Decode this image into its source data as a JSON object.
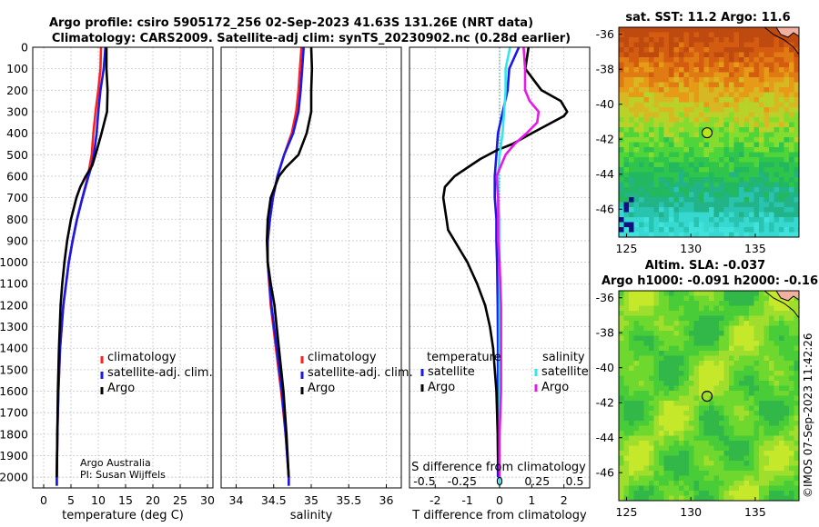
{
  "figure": {
    "title_line1": "Argo profile: csiro 5905172_256 02-Sep-2023 41.63S 131.26E (NRT data)",
    "title_line2": "Climatology: CARS2009. Satellite-adj clim: synTS_20230902.nc (0.28d earlier)",
    "credit_line1": "Argo Australia",
    "credit_line2": "PI: Susan Wijffels",
    "watermark": "©IMOS 07-Sep-2023 11:42:26"
  },
  "depth_axis": {
    "ylim": [
      0,
      2050
    ],
    "ticks": [
      0,
      100,
      200,
      300,
      400,
      500,
      600,
      700,
      800,
      900,
      1000,
      1100,
      1200,
      1300,
      1400,
      1500,
      1600,
      1700,
      1800,
      1900,
      2000
    ]
  },
  "colors": {
    "climatology": "#ff2020",
    "satellite": "#1a1ae6",
    "argo": "#000000",
    "sat_salinity_diff": "#33e6ee",
    "argo_salinity_diff": "#e619e6",
    "zero_line": "#2e8b8b"
  },
  "chart_data": [
    {
      "type": "line",
      "panel": "temperature",
      "xlabel": "temperature (deg C)",
      "xlim": [
        -2,
        31
      ],
      "xticks": [
        0,
        5,
        10,
        15,
        20,
        25,
        30
      ],
      "legend": {
        "position": "lower-right",
        "entries": [
          "climatology",
          "satellite-adj. clim.",
          "Argo"
        ]
      },
      "series": [
        {
          "name": "climatology",
          "color": "#ff2020",
          "depth": [
            0,
            100,
            200,
            300,
            400,
            500,
            600,
            700,
            800,
            900,
            1000,
            1200,
            1400,
            1600,
            1800,
            2000,
            2040
          ],
          "values": [
            10.5,
            10.4,
            10.0,
            9.5,
            9.1,
            8.8,
            8.1,
            7.1,
            6.1,
            5.3,
            4.6,
            3.6,
            3.0,
            2.7,
            2.5,
            2.4,
            2.4
          ]
        },
        {
          "name": "satellite-adj. clim.",
          "color": "#1a1ae6",
          "depth": [
            0,
            100,
            200,
            300,
            400,
            500,
            550,
            600,
            700,
            800,
            900,
            1000,
            1200,
            1400,
            1600,
            1800,
            2000,
            2040
          ],
          "values": [
            11.3,
            11.0,
            10.4,
            10.0,
            9.7,
            9.2,
            8.8,
            8.2,
            7.1,
            6.1,
            5.3,
            4.6,
            3.6,
            3.0,
            2.7,
            2.5,
            2.4,
            2.4
          ]
        },
        {
          "name": "Argo",
          "color": "#000000",
          "depth": [
            0,
            100,
            200,
            300,
            320,
            400,
            500,
            550,
            600,
            650,
            700,
            800,
            900,
            1000,
            1100,
            1200,
            1400,
            1600,
            1800,
            2000
          ],
          "values": [
            11.5,
            11.5,
            11.7,
            11.6,
            11.4,
            10.6,
            9.5,
            8.9,
            7.7,
            6.7,
            6.0,
            5.0,
            4.3,
            3.8,
            3.4,
            3.1,
            2.8,
            2.6,
            2.5,
            2.4
          ]
        }
      ]
    },
    {
      "type": "line",
      "panel": "salinity",
      "xlabel": "salinity",
      "xlim": [
        33.8,
        36.2
      ],
      "xticks": [
        34,
        34.5,
        35,
        35.5,
        36
      ],
      "legend": {
        "position": "lower-right",
        "entries": [
          "climatology",
          "satellite-adj. clim.",
          "Argo"
        ]
      },
      "series": [
        {
          "name": "climatology",
          "color": "#ff2020",
          "depth": [
            0,
            100,
            200,
            300,
            400,
            500,
            600,
            700,
            800,
            900,
            1000,
            1200,
            1400,
            1600,
            1800,
            2000,
            2040
          ],
          "values": [
            34.87,
            34.85,
            34.83,
            34.8,
            34.74,
            34.64,
            34.55,
            34.49,
            34.45,
            34.42,
            34.42,
            34.46,
            34.53,
            34.6,
            34.66,
            34.7,
            34.7
          ]
        },
        {
          "name": "satellite-adj. clim.",
          "color": "#1a1ae6",
          "depth": [
            0,
            100,
            200,
            300,
            400,
            500,
            600,
            700,
            800,
            900,
            1000,
            1200,
            1400,
            1600,
            1800,
            2000,
            2040
          ],
          "values": [
            34.9,
            34.88,
            34.86,
            34.83,
            34.76,
            34.64,
            34.55,
            34.49,
            34.45,
            34.42,
            34.42,
            34.47,
            34.54,
            34.61,
            34.66,
            34.7,
            34.7
          ]
        },
        {
          "name": "Argo",
          "color": "#000000",
          "depth": [
            0,
            100,
            200,
            300,
            400,
            500,
            560,
            600,
            700,
            800,
            900,
            1000,
            1100,
            1200,
            1400,
            1600,
            1800,
            2000
          ],
          "values": [
            35.0,
            35.01,
            35.0,
            35.0,
            34.94,
            34.83,
            34.66,
            34.57,
            34.46,
            34.42,
            34.41,
            34.42,
            34.46,
            34.51,
            34.57,
            34.63,
            34.67,
            34.7
          ]
        }
      ]
    },
    {
      "type": "line",
      "panel": "difference",
      "xlabel": "T difference from climatology",
      "xlabel_top": "S difference from climatology",
      "xlim": [
        -2.8,
        2.8
      ],
      "xticks": [
        -2,
        -1,
        0,
        1,
        2
      ],
      "top_tick_labels": [
        "-0.5",
        "-0.25",
        "0",
        "0.25",
        "0.5"
      ],
      "legend": {
        "position": "lower",
        "temperature_title": "temperature",
        "salinity_title": "salinity",
        "temperature_entries": [
          "satellite",
          "Argo"
        ],
        "salinity_entries": [
          "satellite",
          "Argo"
        ]
      },
      "series": [
        {
          "name": "temperature satellite",
          "color": "#1a1ae6",
          "depth": [
            0,
            100,
            200,
            300,
            400,
            500,
            600,
            700,
            800,
            900,
            1000,
            1200,
            1400,
            1600,
            1800,
            2000
          ],
          "values": [
            0.6,
            0.3,
            0.25,
            0.1,
            -0.05,
            -0.1,
            -0.15,
            -0.15,
            -0.1,
            -0.1,
            -0.08,
            -0.06,
            -0.05,
            -0.05,
            -0.05,
            -0.05
          ]
        },
        {
          "name": "temperature Argo",
          "color": "#000000",
          "depth": [
            0,
            100,
            200,
            250,
            300,
            320,
            400,
            450,
            480,
            520,
            560,
            600,
            650,
            700,
            750,
            800,
            850,
            900,
            1000,
            1100,
            1200,
            1300,
            1400,
            1500,
            1600,
            1700,
            1800,
            1900,
            2000
          ],
          "values": [
            0.9,
            0.8,
            1.3,
            1.9,
            2.1,
            2.0,
            1.0,
            0.4,
            -0.1,
            -0.6,
            -1.0,
            -1.4,
            -1.7,
            -1.75,
            -1.7,
            -1.65,
            -1.6,
            -1.4,
            -1.0,
            -0.7,
            -0.45,
            -0.3,
            -0.2,
            -0.15,
            -0.1,
            -0.08,
            -0.06,
            -0.05,
            -0.02
          ]
        },
        {
          "name": "salinity satellite",
          "color": "#33e6ee",
          "depth": [
            0,
            100,
            200,
            300,
            400,
            500,
            600,
            700,
            800,
            900,
            1000,
            1200,
            1400,
            1600,
            1800,
            2000,
            2040
          ],
          "values": [
            0.07,
            0.04,
            0.04,
            0.03,
            0.02,
            0.0,
            -0.01,
            -0.01,
            0.0,
            0.0,
            0.0,
            0.0,
            0.0,
            0.0,
            0.0,
            0.0,
            0.0
          ]
        },
        {
          "name": "salinity Argo",
          "color": "#e619e6",
          "depth": [
            0,
            100,
            200,
            250,
            300,
            350,
            400,
            450,
            500,
            550,
            600,
            700,
            800,
            900,
            1000,
            1200,
            1400,
            1600,
            1800,
            2000
          ],
          "values": [
            0.16,
            0.17,
            0.17,
            0.2,
            0.26,
            0.25,
            0.18,
            0.1,
            0.04,
            0.01,
            -0.02,
            -0.01,
            -0.01,
            -0.01,
            0.0,
            0.01,
            0.01,
            0.01,
            0.0,
            0.0
          ]
        }
      ]
    },
    {
      "type": "heatmap",
      "panel": "sst_map",
      "title": "sat. SST: 11.2 Argo: 11.6",
      "xlim": [
        124.4,
        138.4
      ],
      "ylim": [
        -47.6,
        -35.6
      ],
      "xticks": [
        125,
        130,
        135
      ],
      "yticks": [
        -36,
        -38,
        -40,
        -42,
        -44,
        -46
      ],
      "float_position": {
        "lon": 131.26,
        "lat": -41.63
      },
      "marker_color": "#b8e61a"
    },
    {
      "type": "heatmap",
      "panel": "sla_map",
      "title_line1": "Altim. SLA: -0.037",
      "title_line2": "Argo h1000: -0.091 h2000: -0.16",
      "xlim": [
        124.4,
        138.4
      ],
      "ylim": [
        -47.6,
        -35.6
      ],
      "xticks": [
        125,
        130,
        135
      ],
      "yticks": [
        -36,
        -38,
        -40,
        -42,
        -44,
        -46
      ],
      "float_position": {
        "lon": 131.26,
        "lat": -41.63
      }
    }
  ]
}
